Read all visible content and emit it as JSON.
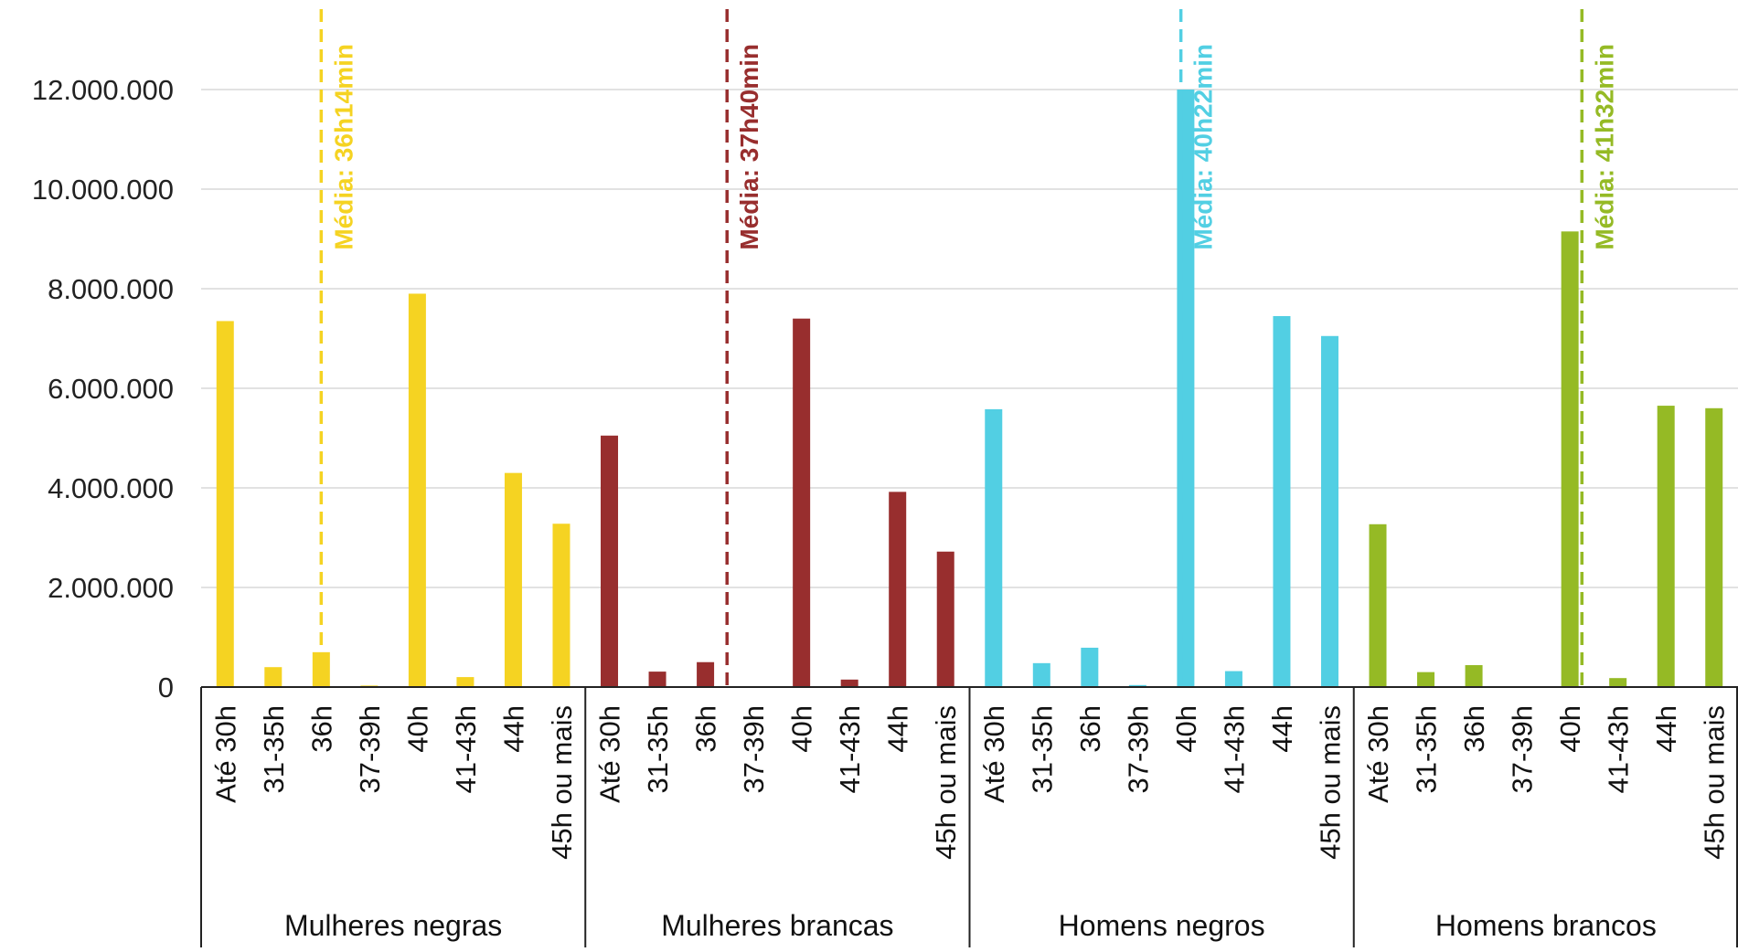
{
  "chart_data": {
    "type": "bar",
    "ylim": [
      0,
      13000000
    ],
    "y_ticks": [
      {
        "value": 0,
        "label": "0"
      },
      {
        "value": 2000000,
        "label": "2.000.000"
      },
      {
        "value": 4000000,
        "label": "4.000.000"
      },
      {
        "value": 6000000,
        "label": "6.000.000"
      },
      {
        "value": 8000000,
        "label": "8.000.000"
      },
      {
        "value": 10000000,
        "label": "10.000.000"
      },
      {
        "value": 12000000,
        "label": "12.000.000"
      }
    ],
    "grid": true,
    "categories": [
      "Até 30h",
      "31-35h",
      "36h",
      "37-39h",
      "40h",
      "41-43h",
      "44h",
      "45h ou mais"
    ],
    "series": [
      {
        "name": "Mulheres negras",
        "color": "#F5D322",
        "values": [
          7350000,
          400000,
          700000,
          30000,
          7900000,
          200000,
          4300000,
          3280000
        ],
        "mean_label": "Média: 36h14min",
        "mean_position": 2.5
      },
      {
        "name": "Mulheres brancas",
        "color": "#982E2E",
        "values": [
          5050000,
          310000,
          500000,
          0,
          7400000,
          150000,
          3920000,
          2720000
        ],
        "mean_label": "Média: 37h40min",
        "mean_position": 2.95
      },
      {
        "name": "Homens negros",
        "color": "#52CFE3",
        "values": [
          5580000,
          480000,
          790000,
          40000,
          12000000,
          320000,
          7450000,
          7050000
        ],
        "mean_label": "Média: 40h22min",
        "mean_position": 4.4
      },
      {
        "name": "Homens brancos",
        "color": "#95BA25",
        "values": [
          3270000,
          300000,
          440000,
          0,
          9150000,
          180000,
          5650000,
          5600000
        ],
        "mean_label": "Média: 41h32min",
        "mean_position": 4.75
      }
    ]
  }
}
